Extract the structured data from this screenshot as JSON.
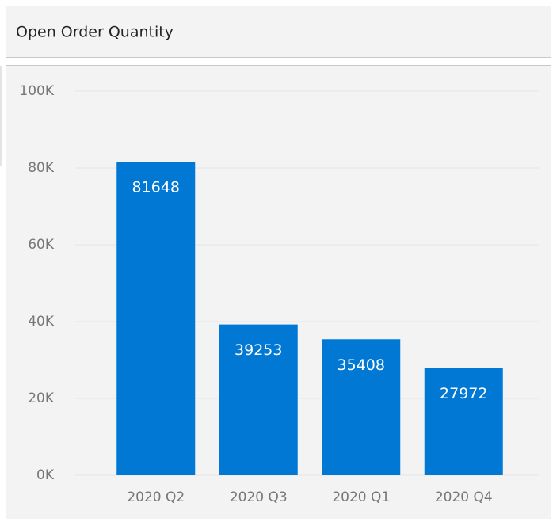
{
  "chart_data": {
    "type": "bar",
    "title": "Open Order Quantity",
    "categories": [
      "2020 Q2",
      "2020 Q3",
      "2020 Q1",
      "2020 Q4"
    ],
    "values": [
      81648,
      39253,
      35408,
      27972
    ],
    "color": "#0078d4",
    "ylim": [
      0,
      100000
    ],
    "yticks": [
      {
        "value": 0,
        "label": "0K"
      },
      {
        "value": 20000,
        "label": "20K"
      },
      {
        "value": 40000,
        "label": "40K"
      },
      {
        "value": 60000,
        "label": "60K"
      },
      {
        "value": 80000,
        "label": "80K"
      },
      {
        "value": 100000,
        "label": "100K"
      }
    ],
    "grid": true
  }
}
